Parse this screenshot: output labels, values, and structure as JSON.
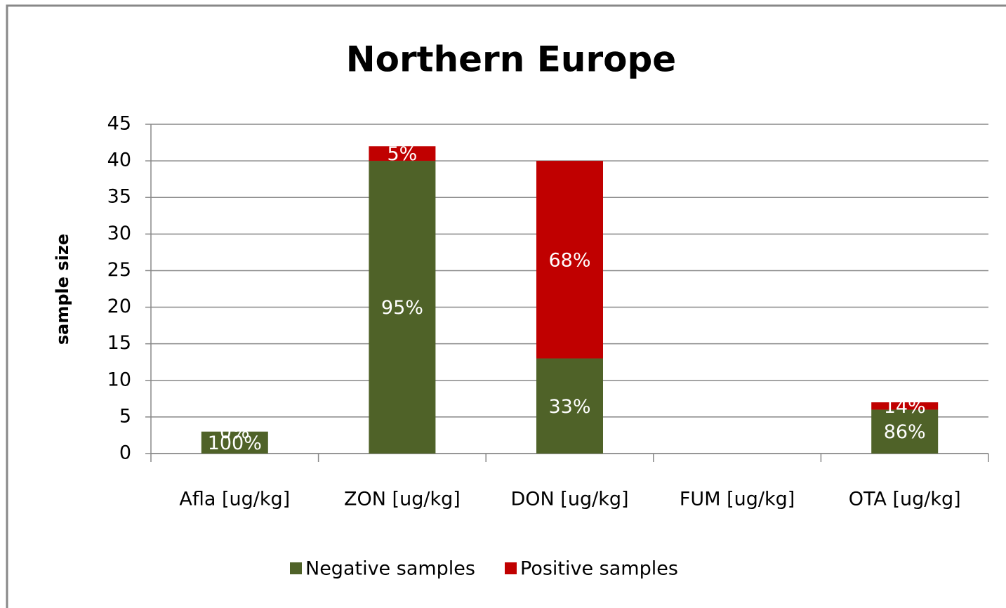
{
  "chart_data": {
    "type": "stacked_bar",
    "title": "Northern Europe",
    "y_label": "sample size",
    "categories": [
      "Afla [ug/kg]",
      "ZON [ug/kg]",
      "DON [ug/kg]",
      "FUM [ug/kg]",
      "OTA [ug/kg]"
    ],
    "series": [
      {
        "name": "Negative samples",
        "color": "#4f6228",
        "values": [
          3,
          40,
          13,
          0,
          6
        ],
        "percent_labels": [
          "100%",
          "95%",
          "33%",
          null,
          "86%"
        ]
      },
      {
        "name": "Positive samples",
        "color": "#c00000",
        "values": [
          0,
          2,
          27,
          0,
          1
        ],
        "percent_labels": [
          "0%",
          "5%",
          "68%",
          null,
          "14%"
        ]
      }
    ],
    "ylim": [
      0,
      45
    ],
    "yticks": [
      0,
      5,
      10,
      15,
      20,
      25,
      30,
      35,
      40,
      45
    ],
    "grid": true,
    "legend": "bottom"
  }
}
